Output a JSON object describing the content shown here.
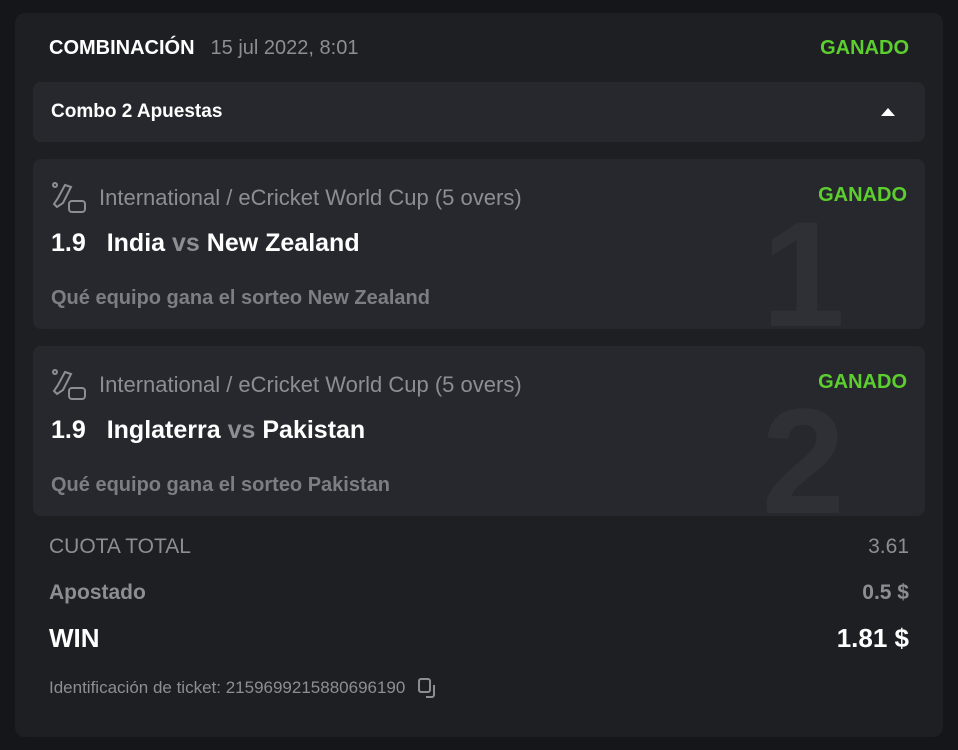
{
  "header": {
    "title": "COMBINACIÓN",
    "date": "15 jul 2022, 8:01",
    "status": "GANADO"
  },
  "combo": {
    "label": "Combo 2 Apuestas"
  },
  "bets": [
    {
      "index": "1",
      "league": "International / eCricket World Cup (5 overs)",
      "status": "GANADO",
      "odds": "1.9",
      "home": "India",
      "vs": "vs",
      "away": "New Zealand",
      "market": "Qué equipo gana el sorteo New Zealand"
    },
    {
      "index": "2",
      "league": "International / eCricket World Cup (5 overs)",
      "status": "GANADO",
      "odds": "1.9",
      "home": "Inglaterra",
      "vs": "vs",
      "away": "Pakistan",
      "market": "Qué equipo gana el sorteo Pakistan"
    }
  ],
  "summary": {
    "total_odds_label": "CUOTA TOTAL",
    "total_odds": "3.61",
    "staked_label": "Apostado",
    "staked": "0.5 $",
    "win_label": "WIN",
    "win": "1.81 $"
  },
  "ticket": {
    "label": "Identificación de ticket: 2159699215880696190"
  },
  "colors": {
    "won": "#5ccf2e",
    "card": "#1e1f23",
    "panel": "#27282d"
  }
}
